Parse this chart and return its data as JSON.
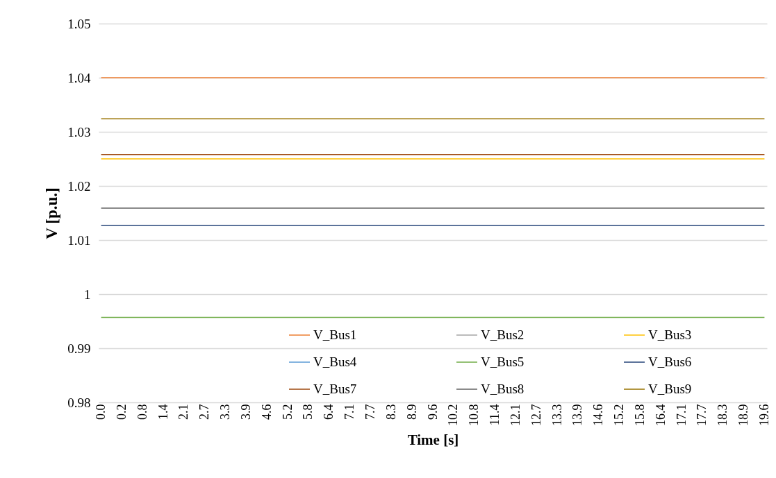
{
  "chart_data": {
    "type": "line",
    "xlabel": "Time [s]",
    "ylabel": "V [p.u.]",
    "categories": [
      "0.0",
      "0.2",
      "0.8",
      "1.4",
      "2.1",
      "2.7",
      "3.3",
      "3.9",
      "4.6",
      "5.2",
      "5.8",
      "6.4",
      "7.1",
      "7.7",
      "8.3",
      "8.9",
      "9.6",
      "10.2",
      "10.8",
      "11.4",
      "12.1",
      "12.7",
      "13.3",
      "13.9",
      "14.6",
      "15.2",
      "15.8",
      "16.4",
      "17.1",
      "17.7",
      "18.3",
      "18.9",
      "19.6"
    ],
    "series": [
      {
        "name": "V_Bus1",
        "color": "#ed7d31",
        "values": [
          1.04,
          1.04,
          1.04,
          1.04,
          1.04,
          1.04,
          1.04,
          1.04,
          1.04,
          1.04,
          1.04,
          1.04,
          1.04,
          1.04,
          1.04,
          1.04,
          1.04,
          1.04,
          1.04,
          1.04,
          1.04,
          1.04,
          1.04,
          1.04,
          1.04,
          1.04,
          1.04,
          1.04,
          1.04,
          1.04,
          1.04,
          1.04,
          1.04
        ]
      },
      {
        "name": "V_Bus2",
        "color": "#a5a5a5",
        "values": [
          null,
          null,
          null,
          null,
          null,
          null,
          null,
          null,
          null,
          null,
          null,
          null,
          null,
          null,
          null,
          null,
          null,
          null,
          null,
          null,
          null,
          null,
          null,
          null,
          null,
          null,
          null,
          null,
          null,
          null,
          null,
          null,
          null
        ]
      },
      {
        "name": "V_Bus3",
        "color": "#ffc000",
        "values": [
          1.025,
          1.025,
          1.025,
          1.025,
          1.025,
          1.025,
          1.025,
          1.025,
          1.025,
          1.025,
          1.025,
          1.025,
          1.025,
          1.025,
          1.025,
          1.025,
          1.025,
          1.025,
          1.025,
          1.025,
          1.025,
          1.025,
          1.025,
          1.025,
          1.025,
          1.025,
          1.025,
          1.025,
          1.025,
          1.025,
          1.025,
          1.025,
          1.025
        ]
      },
      {
        "name": "V_Bus4",
        "color": "#5b9bd5",
        "values": [
          null,
          null,
          null,
          null,
          null,
          null,
          null,
          null,
          null,
          null,
          null,
          null,
          null,
          null,
          null,
          null,
          null,
          null,
          null,
          null,
          null,
          null,
          null,
          null,
          null,
          null,
          null,
          null,
          null,
          null,
          null,
          null,
          null
        ]
      },
      {
        "name": "V_Bus5",
        "color": "#70ad47",
        "values": [
          0.9957,
          0.9957,
          0.9957,
          0.9957,
          0.9957,
          0.9957,
          0.9957,
          0.9957,
          0.9957,
          0.9957,
          0.9957,
          0.9957,
          0.9957,
          0.9957,
          0.9957,
          0.9957,
          0.9957,
          0.9957,
          0.9957,
          0.9957,
          0.9957,
          0.9957,
          0.9957,
          0.9957,
          0.9957,
          0.9957,
          0.9957,
          0.9957,
          0.9957,
          0.9957,
          0.9957,
          0.9957,
          0.9957
        ]
      },
      {
        "name": "V_Bus6",
        "color": "#264478",
        "values": [
          1.0127,
          1.0127,
          1.0127,
          1.0127,
          1.0127,
          1.0127,
          1.0127,
          1.0127,
          1.0127,
          1.0127,
          1.0127,
          1.0127,
          1.0127,
          1.0127,
          1.0127,
          1.0127,
          1.0127,
          1.0127,
          1.0127,
          1.0127,
          1.0127,
          1.0127,
          1.0127,
          1.0127,
          1.0127,
          1.0127,
          1.0127,
          1.0127,
          1.0127,
          1.0127,
          1.0127,
          1.0127,
          1.0127
        ]
      },
      {
        "name": "V_Bus7",
        "color": "#9e480e",
        "values": [
          1.0258,
          1.0258,
          1.0258,
          1.0258,
          1.0258,
          1.0258,
          1.0258,
          1.0258,
          1.0258,
          1.0258,
          1.0258,
          1.0258,
          1.0258,
          1.0258,
          1.0258,
          1.0258,
          1.0258,
          1.0258,
          1.0258,
          1.0258,
          1.0258,
          1.0258,
          1.0258,
          1.0258,
          1.0258,
          1.0258,
          1.0258,
          1.0258,
          1.0258,
          1.0258,
          1.0258,
          1.0258,
          1.0258
        ]
      },
      {
        "name": "V_Bus8",
        "color": "#636363",
        "values": [
          1.0159,
          1.0159,
          1.0159,
          1.0159,
          1.0159,
          1.0159,
          1.0159,
          1.0159,
          1.0159,
          1.0159,
          1.0159,
          1.0159,
          1.0159,
          1.0159,
          1.0159,
          1.0159,
          1.0159,
          1.0159,
          1.0159,
          1.0159,
          1.0159,
          1.0159,
          1.0159,
          1.0159,
          1.0159,
          1.0159,
          1.0159,
          1.0159,
          1.0159,
          1.0159,
          1.0159,
          1.0159,
          1.0159
        ]
      },
      {
        "name": "V_Bus9",
        "color": "#997300",
        "values": [
          1.0324,
          1.0324,
          1.0324,
          1.0324,
          1.0324,
          1.0324,
          1.0324,
          1.0324,
          1.0324,
          1.0324,
          1.0324,
          1.0324,
          1.0324,
          1.0324,
          1.0324,
          1.0324,
          1.0324,
          1.0324,
          1.0324,
          1.0324,
          1.0324,
          1.0324,
          1.0324,
          1.0324,
          1.0324,
          1.0324,
          1.0324,
          1.0324,
          1.0324,
          1.0324,
          1.0324,
          1.0324,
          1.0324
        ]
      }
    ],
    "ylim": [
      0.98,
      1.05
    ],
    "yticks": [
      0.98,
      0.99,
      {
        "value": 1,
        "label": "1"
      },
      1.01,
      1.02,
      1.03,
      1.04,
      1.05
    ],
    "grid": "y",
    "legend": "bottom right",
    "marker": "none",
    "line_style": "solid"
  }
}
